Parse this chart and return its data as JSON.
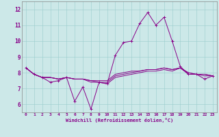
{
  "xlabel": "Windchill (Refroidissement éolien,°C)",
  "background_color": "#cce8e8",
  "line_color": "#880088",
  "xlim": [
    -0.5,
    23.5
  ],
  "ylim": [
    5.5,
    12.5
  ],
  "yticks": [
    6,
    7,
    8,
    9,
    10,
    11,
    12
  ],
  "xticks": [
    0,
    1,
    2,
    3,
    4,
    5,
    6,
    7,
    8,
    9,
    10,
    11,
    12,
    13,
    14,
    15,
    16,
    17,
    18,
    19,
    20,
    21,
    22,
    23
  ],
  "series": [
    [
      8.3,
      7.9,
      7.7,
      7.4,
      7.5,
      7.7,
      6.2,
      7.1,
      5.7,
      7.4,
      7.3,
      9.1,
      9.9,
      10.0,
      11.1,
      11.8,
      11.0,
      11.5,
      10.0,
      8.4,
      7.9,
      7.9,
      7.6,
      7.8
    ],
    [
      8.3,
      7.9,
      7.7,
      7.7,
      7.6,
      7.7,
      7.6,
      7.6,
      7.5,
      7.5,
      7.5,
      7.9,
      8.0,
      8.1,
      8.1,
      8.2,
      8.2,
      8.3,
      8.2,
      8.3,
      8.0,
      7.9,
      7.9,
      7.8
    ],
    [
      8.3,
      7.9,
      7.7,
      7.7,
      7.6,
      7.7,
      7.6,
      7.6,
      7.4,
      7.4,
      7.3,
      7.7,
      7.8,
      7.9,
      8.0,
      8.1,
      8.1,
      8.2,
      8.1,
      8.3,
      7.9,
      7.9,
      7.8,
      7.8
    ],
    [
      8.3,
      7.9,
      7.7,
      7.7,
      7.6,
      7.7,
      7.6,
      7.6,
      7.5,
      7.4,
      7.4,
      7.8,
      7.9,
      8.0,
      8.1,
      8.2,
      8.2,
      8.3,
      8.2,
      8.3,
      8.0,
      7.9,
      7.9,
      7.8
    ]
  ]
}
